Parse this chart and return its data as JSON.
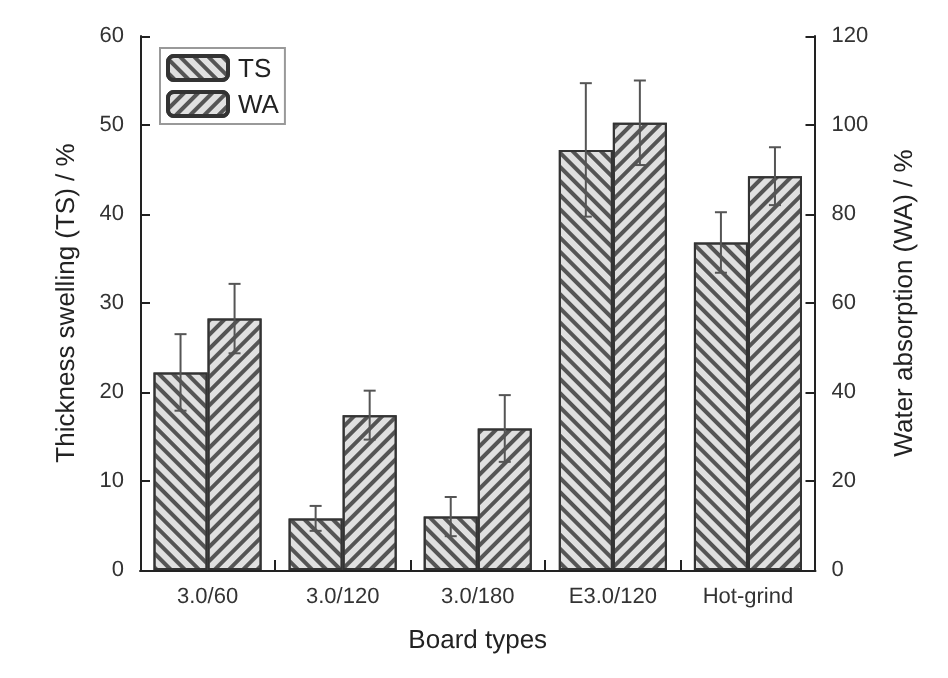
{
  "chart_data": {
    "type": "bar",
    "xlabel": "Board types",
    "ylabel": "Thickness swelling (TS) / %",
    "y2label": "Water absorption (WA) / %",
    "categories": [
      "3.0/60",
      "3.0/120",
      "3.0/180",
      "E3.0/120",
      "Hot-grind"
    ],
    "series": [
      {
        "name": "TS",
        "color": "#e0e0e0",
        "values": [
          22.2,
          5.8,
          6.0,
          47.2,
          36.8
        ],
        "errors": [
          4.3,
          1.4,
          2.2,
          7.5,
          3.4
        ]
      },
      {
        "name": "WA",
        "color": "#e0e0e0",
        "axis": "y2",
        "values": [
          56.5,
          34.8,
          31.8,
          100.5,
          88.5
        ],
        "errors": [
          7.8,
          5.5,
          7.5,
          9.5,
          6.5
        ]
      }
    ],
    "ylim": [
      0,
      60
    ],
    "yticks": [
      0,
      10,
      20,
      30,
      40,
      50,
      60
    ],
    "y2lim": [
      0,
      120
    ],
    "y2ticks": [
      0,
      20,
      40,
      60,
      80,
      100,
      120
    ],
    "grid": false,
    "legend": "top left"
  }
}
